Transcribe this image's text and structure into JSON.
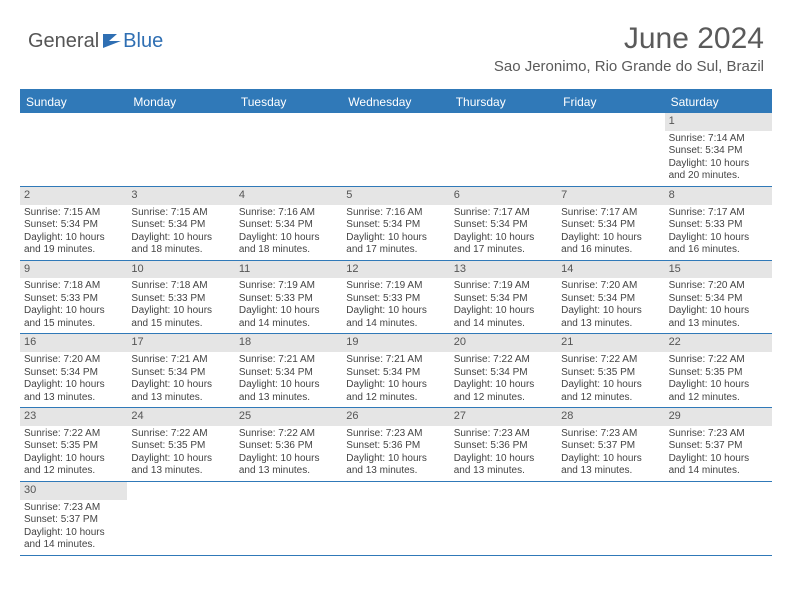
{
  "logo": {
    "part1": "General",
    "part2": "Blue"
  },
  "title": "June 2024",
  "location": "Sao Jeronimo, Rio Grande do Sul, Brazil",
  "header_bg": "#3079b8",
  "header_fg": "#ffffff",
  "daynum_bg": "#e5e5e5",
  "border_color": "#3079b8",
  "text_color": "#444444",
  "day_names": [
    "Sunday",
    "Monday",
    "Tuesday",
    "Wednesday",
    "Thursday",
    "Friday",
    "Saturday"
  ],
  "weeks": [
    [
      null,
      null,
      null,
      null,
      null,
      null,
      {
        "n": "1",
        "sr": "Sunrise: 7:14 AM",
        "ss": "Sunset: 5:34 PM",
        "d1": "Daylight: 10 hours",
        "d2": "and 20 minutes."
      }
    ],
    [
      {
        "n": "2",
        "sr": "Sunrise: 7:15 AM",
        "ss": "Sunset: 5:34 PM",
        "d1": "Daylight: 10 hours",
        "d2": "and 19 minutes."
      },
      {
        "n": "3",
        "sr": "Sunrise: 7:15 AM",
        "ss": "Sunset: 5:34 PM",
        "d1": "Daylight: 10 hours",
        "d2": "and 18 minutes."
      },
      {
        "n": "4",
        "sr": "Sunrise: 7:16 AM",
        "ss": "Sunset: 5:34 PM",
        "d1": "Daylight: 10 hours",
        "d2": "and 18 minutes."
      },
      {
        "n": "5",
        "sr": "Sunrise: 7:16 AM",
        "ss": "Sunset: 5:34 PM",
        "d1": "Daylight: 10 hours",
        "d2": "and 17 minutes."
      },
      {
        "n": "6",
        "sr": "Sunrise: 7:17 AM",
        "ss": "Sunset: 5:34 PM",
        "d1": "Daylight: 10 hours",
        "d2": "and 17 minutes."
      },
      {
        "n": "7",
        "sr": "Sunrise: 7:17 AM",
        "ss": "Sunset: 5:34 PM",
        "d1": "Daylight: 10 hours",
        "d2": "and 16 minutes."
      },
      {
        "n": "8",
        "sr": "Sunrise: 7:17 AM",
        "ss": "Sunset: 5:33 PM",
        "d1": "Daylight: 10 hours",
        "d2": "and 16 minutes."
      }
    ],
    [
      {
        "n": "9",
        "sr": "Sunrise: 7:18 AM",
        "ss": "Sunset: 5:33 PM",
        "d1": "Daylight: 10 hours",
        "d2": "and 15 minutes."
      },
      {
        "n": "10",
        "sr": "Sunrise: 7:18 AM",
        "ss": "Sunset: 5:33 PM",
        "d1": "Daylight: 10 hours",
        "d2": "and 15 minutes."
      },
      {
        "n": "11",
        "sr": "Sunrise: 7:19 AM",
        "ss": "Sunset: 5:33 PM",
        "d1": "Daylight: 10 hours",
        "d2": "and 14 minutes."
      },
      {
        "n": "12",
        "sr": "Sunrise: 7:19 AM",
        "ss": "Sunset: 5:33 PM",
        "d1": "Daylight: 10 hours",
        "d2": "and 14 minutes."
      },
      {
        "n": "13",
        "sr": "Sunrise: 7:19 AM",
        "ss": "Sunset: 5:34 PM",
        "d1": "Daylight: 10 hours",
        "d2": "and 14 minutes."
      },
      {
        "n": "14",
        "sr": "Sunrise: 7:20 AM",
        "ss": "Sunset: 5:34 PM",
        "d1": "Daylight: 10 hours",
        "d2": "and 13 minutes."
      },
      {
        "n": "15",
        "sr": "Sunrise: 7:20 AM",
        "ss": "Sunset: 5:34 PM",
        "d1": "Daylight: 10 hours",
        "d2": "and 13 minutes."
      }
    ],
    [
      {
        "n": "16",
        "sr": "Sunrise: 7:20 AM",
        "ss": "Sunset: 5:34 PM",
        "d1": "Daylight: 10 hours",
        "d2": "and 13 minutes."
      },
      {
        "n": "17",
        "sr": "Sunrise: 7:21 AM",
        "ss": "Sunset: 5:34 PM",
        "d1": "Daylight: 10 hours",
        "d2": "and 13 minutes."
      },
      {
        "n": "18",
        "sr": "Sunrise: 7:21 AM",
        "ss": "Sunset: 5:34 PM",
        "d1": "Daylight: 10 hours",
        "d2": "and 13 minutes."
      },
      {
        "n": "19",
        "sr": "Sunrise: 7:21 AM",
        "ss": "Sunset: 5:34 PM",
        "d1": "Daylight: 10 hours",
        "d2": "and 12 minutes."
      },
      {
        "n": "20",
        "sr": "Sunrise: 7:22 AM",
        "ss": "Sunset: 5:34 PM",
        "d1": "Daylight: 10 hours",
        "d2": "and 12 minutes."
      },
      {
        "n": "21",
        "sr": "Sunrise: 7:22 AM",
        "ss": "Sunset: 5:35 PM",
        "d1": "Daylight: 10 hours",
        "d2": "and 12 minutes."
      },
      {
        "n": "22",
        "sr": "Sunrise: 7:22 AM",
        "ss": "Sunset: 5:35 PM",
        "d1": "Daylight: 10 hours",
        "d2": "and 12 minutes."
      }
    ],
    [
      {
        "n": "23",
        "sr": "Sunrise: 7:22 AM",
        "ss": "Sunset: 5:35 PM",
        "d1": "Daylight: 10 hours",
        "d2": "and 12 minutes."
      },
      {
        "n": "24",
        "sr": "Sunrise: 7:22 AM",
        "ss": "Sunset: 5:35 PM",
        "d1": "Daylight: 10 hours",
        "d2": "and 13 minutes."
      },
      {
        "n": "25",
        "sr": "Sunrise: 7:22 AM",
        "ss": "Sunset: 5:36 PM",
        "d1": "Daylight: 10 hours",
        "d2": "and 13 minutes."
      },
      {
        "n": "26",
        "sr": "Sunrise: 7:23 AM",
        "ss": "Sunset: 5:36 PM",
        "d1": "Daylight: 10 hours",
        "d2": "and 13 minutes."
      },
      {
        "n": "27",
        "sr": "Sunrise: 7:23 AM",
        "ss": "Sunset: 5:36 PM",
        "d1": "Daylight: 10 hours",
        "d2": "and 13 minutes."
      },
      {
        "n": "28",
        "sr": "Sunrise: 7:23 AM",
        "ss": "Sunset: 5:37 PM",
        "d1": "Daylight: 10 hours",
        "d2": "and 13 minutes."
      },
      {
        "n": "29",
        "sr": "Sunrise: 7:23 AM",
        "ss": "Sunset: 5:37 PM",
        "d1": "Daylight: 10 hours",
        "d2": "and 14 minutes."
      }
    ],
    [
      {
        "n": "30",
        "sr": "Sunrise: 7:23 AM",
        "ss": "Sunset: 5:37 PM",
        "d1": "Daylight: 10 hours",
        "d2": "and 14 minutes."
      },
      null,
      null,
      null,
      null,
      null,
      null
    ]
  ]
}
